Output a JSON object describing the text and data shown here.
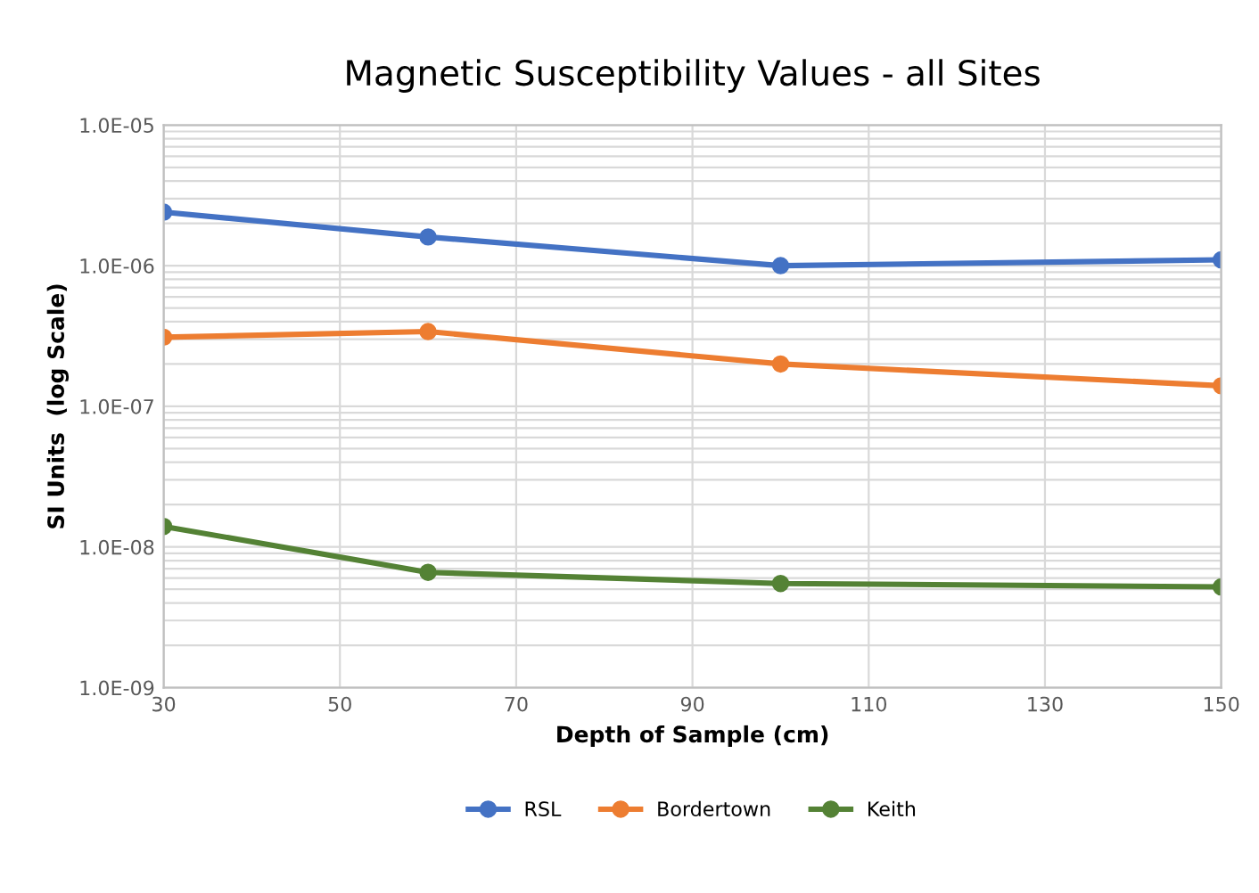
{
  "chart_data": {
    "type": "line",
    "title": "Magnetic Susceptibility Values - all Sites",
    "xlabel": "Depth of Sample (cm)",
    "ylabel": "SI Units  (log Scale)",
    "x": [
      30,
      60,
      100,
      150
    ],
    "series": [
      {
        "name": "RSL",
        "color": "#4472c4",
        "values": [
          2.4e-06,
          1.6e-06,
          1e-06,
          1.1e-06
        ]
      },
      {
        "name": "Bordertown",
        "color": "#ed7d31",
        "values": [
          3.1e-07,
          3.4e-07,
          2e-07,
          1.4e-07
        ]
      },
      {
        "name": "Keith",
        "color": "#548235",
        "values": [
          1.4e-08,
          6.6e-09,
          5.5e-09,
          5.2e-09
        ]
      }
    ],
    "log": "y",
    "xlim": [
      30,
      150
    ],
    "xticks": [
      30,
      50,
      70,
      90,
      110,
      130,
      150
    ],
    "ylim": [
      1e-09,
      1e-05
    ],
    "yticks": [
      {
        "value": 1e-09,
        "label": "1.0E-09"
      },
      {
        "value": 1e-08,
        "label": "1.0E-08"
      },
      {
        "value": 1e-07,
        "label": "1.0E-07"
      },
      {
        "value": 1e-06,
        "label": "1.0E-06"
      },
      {
        "value": 1e-05,
        "label": "1.0E-05"
      }
    ],
    "grid": true,
    "legend": "bottom",
    "marker": "circle",
    "line_style": "solid"
  }
}
